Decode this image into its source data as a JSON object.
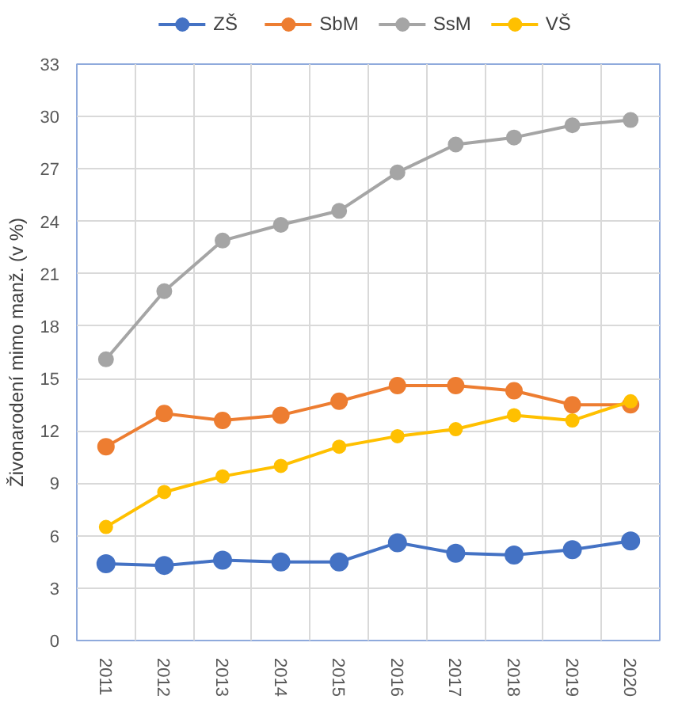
{
  "chart_data": {
    "type": "line",
    "ylabel": "Živonarodení mimo manž. (v %)",
    "categories": [
      "2011",
      "2012",
      "2013",
      "2014",
      "2015",
      "2016",
      "2017",
      "2018",
      "2019",
      "2020"
    ],
    "series": [
      {
        "name": "ZŠ",
        "color": "#4472c4",
        "values": [
          4.4,
          4.3,
          4.6,
          4.5,
          4.5,
          5.6,
          5.0,
          4.9,
          5.2,
          5.7
        ]
      },
      {
        "name": "SbM",
        "color": "#ed7d31",
        "values": [
          11.1,
          13.0,
          12.6,
          12.9,
          13.7,
          14.6,
          14.6,
          14.3,
          13.5,
          13.5
        ]
      },
      {
        "name": "SsM",
        "color": "#a5a5a5",
        "values": [
          16.1,
          20.0,
          22.9,
          23.8,
          24.6,
          26.8,
          28.4,
          28.8,
          29.5,
          29.8
        ]
      },
      {
        "name": "VŠ",
        "color": "#ffc000",
        "values": [
          6.5,
          8.5,
          9.4,
          10.0,
          11.1,
          11.7,
          12.1,
          12.9,
          12.6,
          13.7
        ]
      }
    ],
    "ylim": [
      0,
      33
    ],
    "yticks": [
      0,
      3,
      6,
      9,
      12,
      15,
      18,
      21,
      24,
      27,
      30,
      33
    ],
    "grid": true,
    "legend": "top",
    "marker": "circle",
    "line_style": "solid"
  }
}
